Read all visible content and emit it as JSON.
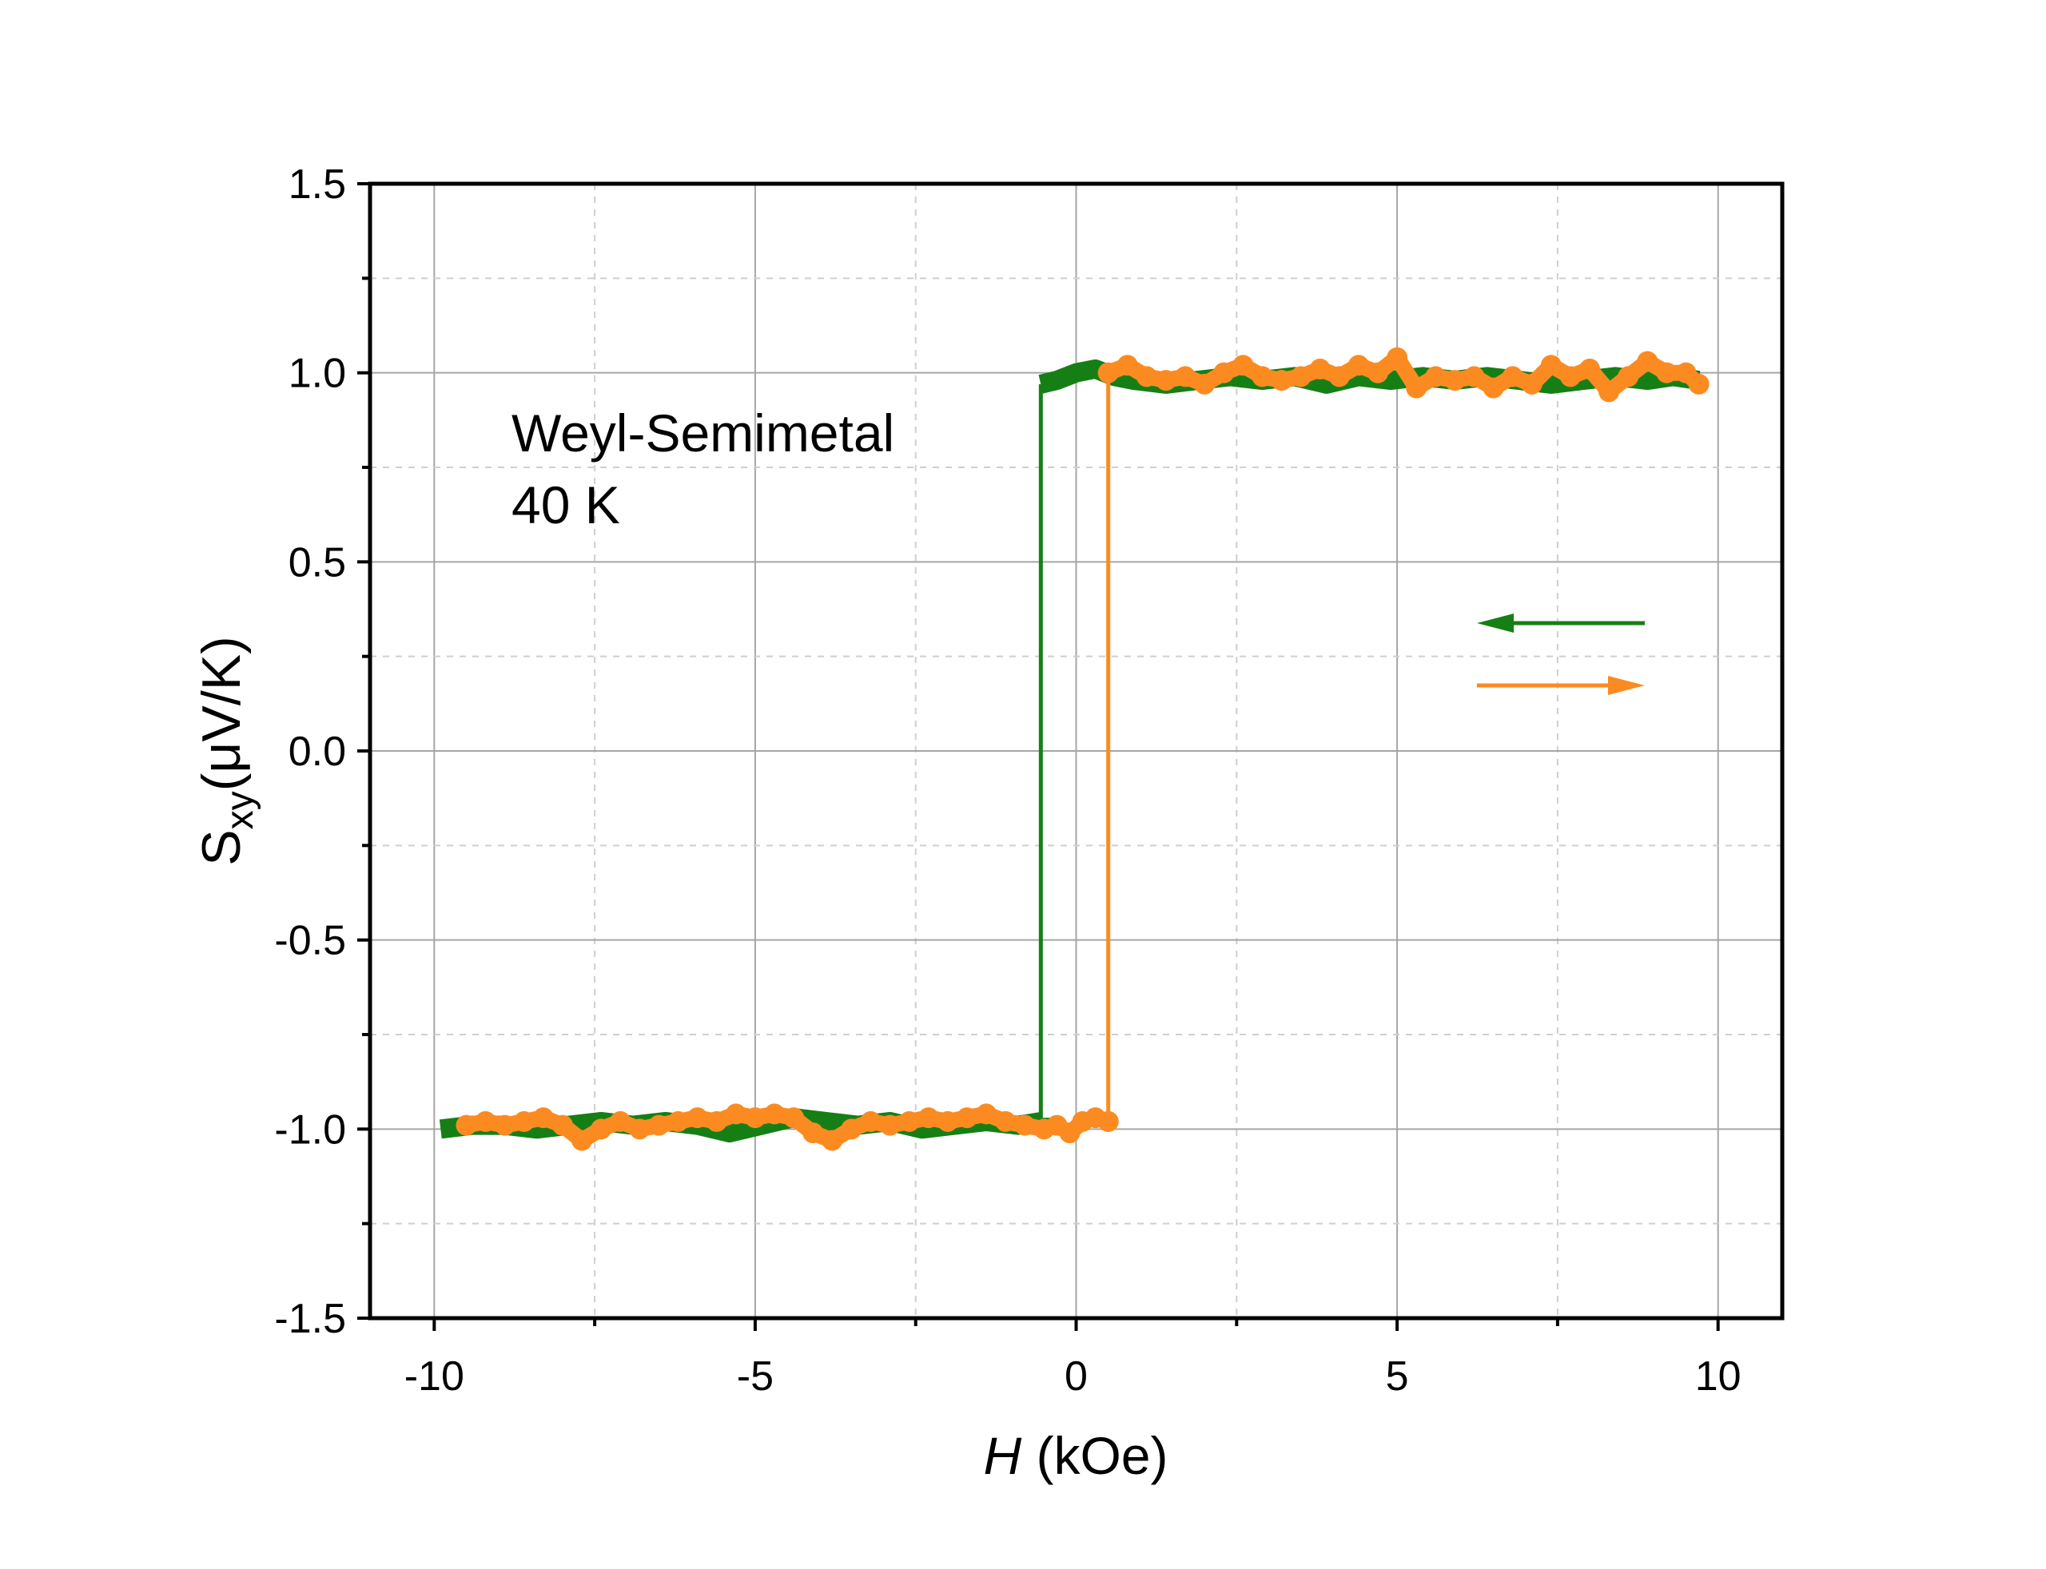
{
  "chart_data": {
    "type": "line",
    "title": "",
    "xlabel": {
      "italic": "H",
      "text": " (kOe)"
    },
    "ylabel": {
      "main": "S",
      "sub": "xy",
      "unit": "(μV/K)"
    },
    "xlim": [
      -11,
      11
    ],
    "ylim": [
      -1.5,
      1.5
    ],
    "x_ticks": [
      -10,
      -5,
      0,
      5,
      10
    ],
    "x_tick_labels": [
      "-10",
      "-5",
      "0",
      "5",
      "10"
    ],
    "y_ticks": [
      -1.5,
      -1.0,
      -0.5,
      0.0,
      0.5,
      1.0,
      1.5
    ],
    "y_tick_labels": [
      "-1.5",
      "-1.0",
      "-0.5",
      "0.0",
      "0.5",
      "1.0",
      "1.5"
    ],
    "grid": true,
    "annotation": {
      "line1": "Weyl-Semimetal",
      "line2": "40 K"
    },
    "legend_arrows": [
      {
        "series": "sweep-down",
        "direction": "left",
        "color": "#157f16"
      },
      {
        "series": "sweep-up",
        "direction": "right",
        "color": "#fb8b21"
      }
    ],
    "series": [
      {
        "name": "sweep-down",
        "color": "#157f16",
        "style": "thick-line",
        "x": [
          9.7,
          9.3,
          8.9,
          8.4,
          7.9,
          7.4,
          6.9,
          6.4,
          5.9,
          5.4,
          4.9,
          4.4,
          3.9,
          3.4,
          2.9,
          2.4,
          1.9,
          1.4,
          0.9,
          0.6,
          0.3,
          0.0,
          -0.3,
          -0.55,
          -0.55,
          -0.55,
          -0.9,
          -1.4,
          -1.9,
          -2.4,
          -2.9,
          -3.4,
          -3.9,
          -4.4,
          -4.9,
          -5.4,
          -5.9,
          -6.4,
          -6.9,
          -7.4,
          -7.9,
          -8.4,
          -8.9,
          -9.4,
          -9.9
        ],
        "y": [
          0.98,
          0.99,
          0.98,
          0.99,
          0.98,
          0.97,
          0.98,
          0.99,
          0.98,
          0.99,
          0.98,
          0.99,
          0.97,
          0.99,
          0.98,
          0.99,
          0.98,
          0.97,
          0.98,
          0.99,
          1.01,
          1.0,
          0.98,
          0.97,
          -0.97,
          -0.98,
          -0.99,
          -0.98,
          -0.99,
          -1.0,
          -0.98,
          -0.99,
          -0.98,
          -0.97,
          -0.99,
          -1.01,
          -0.99,
          -0.98,
          -0.99,
          -0.98,
          -0.99,
          -1.0,
          -0.99,
          -0.99,
          -1.0
        ]
      },
      {
        "name": "sweep-up",
        "color": "#fb8b21",
        "style": "thick-dotted-line",
        "x": [
          -9.5,
          -9.2,
          -8.9,
          -8.6,
          -8.3,
          -8.0,
          -7.7,
          -7.4,
          -7.1,
          -6.8,
          -6.5,
          -6.2,
          -5.9,
          -5.6,
          -5.3,
          -5.0,
          -4.7,
          -4.4,
          -4.1,
          -3.8,
          -3.5,
          -3.2,
          -2.9,
          -2.6,
          -2.3,
          -2.0,
          -1.7,
          -1.4,
          -1.1,
          -0.8,
          -0.5,
          -0.3,
          -0.1,
          0.1,
          0.3,
          0.5,
          0.5,
          0.5,
          0.8,
          1.1,
          1.4,
          1.7,
          2.0,
          2.3,
          2.6,
          2.9,
          3.2,
          3.5,
          3.8,
          4.1,
          4.4,
          4.7,
          5.0,
          5.3,
          5.6,
          5.9,
          6.2,
          6.5,
          6.8,
          7.1,
          7.4,
          7.7,
          8.0,
          8.3,
          8.6,
          8.9,
          9.2,
          9.5,
          9.7
        ],
        "y": [
          -0.99,
          -0.98,
          -0.99,
          -0.98,
          -0.97,
          -0.99,
          -1.03,
          -1.0,
          -0.98,
          -1.0,
          -0.99,
          -0.98,
          -0.97,
          -0.98,
          -0.96,
          -0.97,
          -0.96,
          -0.97,
          -1.01,
          -1.03,
          -1.0,
          -0.98,
          -0.99,
          -0.98,
          -0.97,
          -0.98,
          -0.97,
          -0.96,
          -0.98,
          -0.99,
          -1.0,
          -0.99,
          -1.01,
          -0.98,
          -0.97,
          -0.98,
          -0.98,
          1.0,
          1.02,
          0.99,
          0.98,
          0.99,
          0.97,
          1.0,
          1.02,
          0.99,
          0.98,
          0.99,
          1.01,
          0.99,
          1.02,
          1.0,
          1.04,
          0.96,
          0.99,
          0.98,
          0.99,
          0.96,
          0.99,
          0.97,
          1.02,
          0.99,
          1.01,
          0.95,
          0.99,
          1.03,
          1.0,
          1.0,
          0.97
        ]
      }
    ]
  }
}
